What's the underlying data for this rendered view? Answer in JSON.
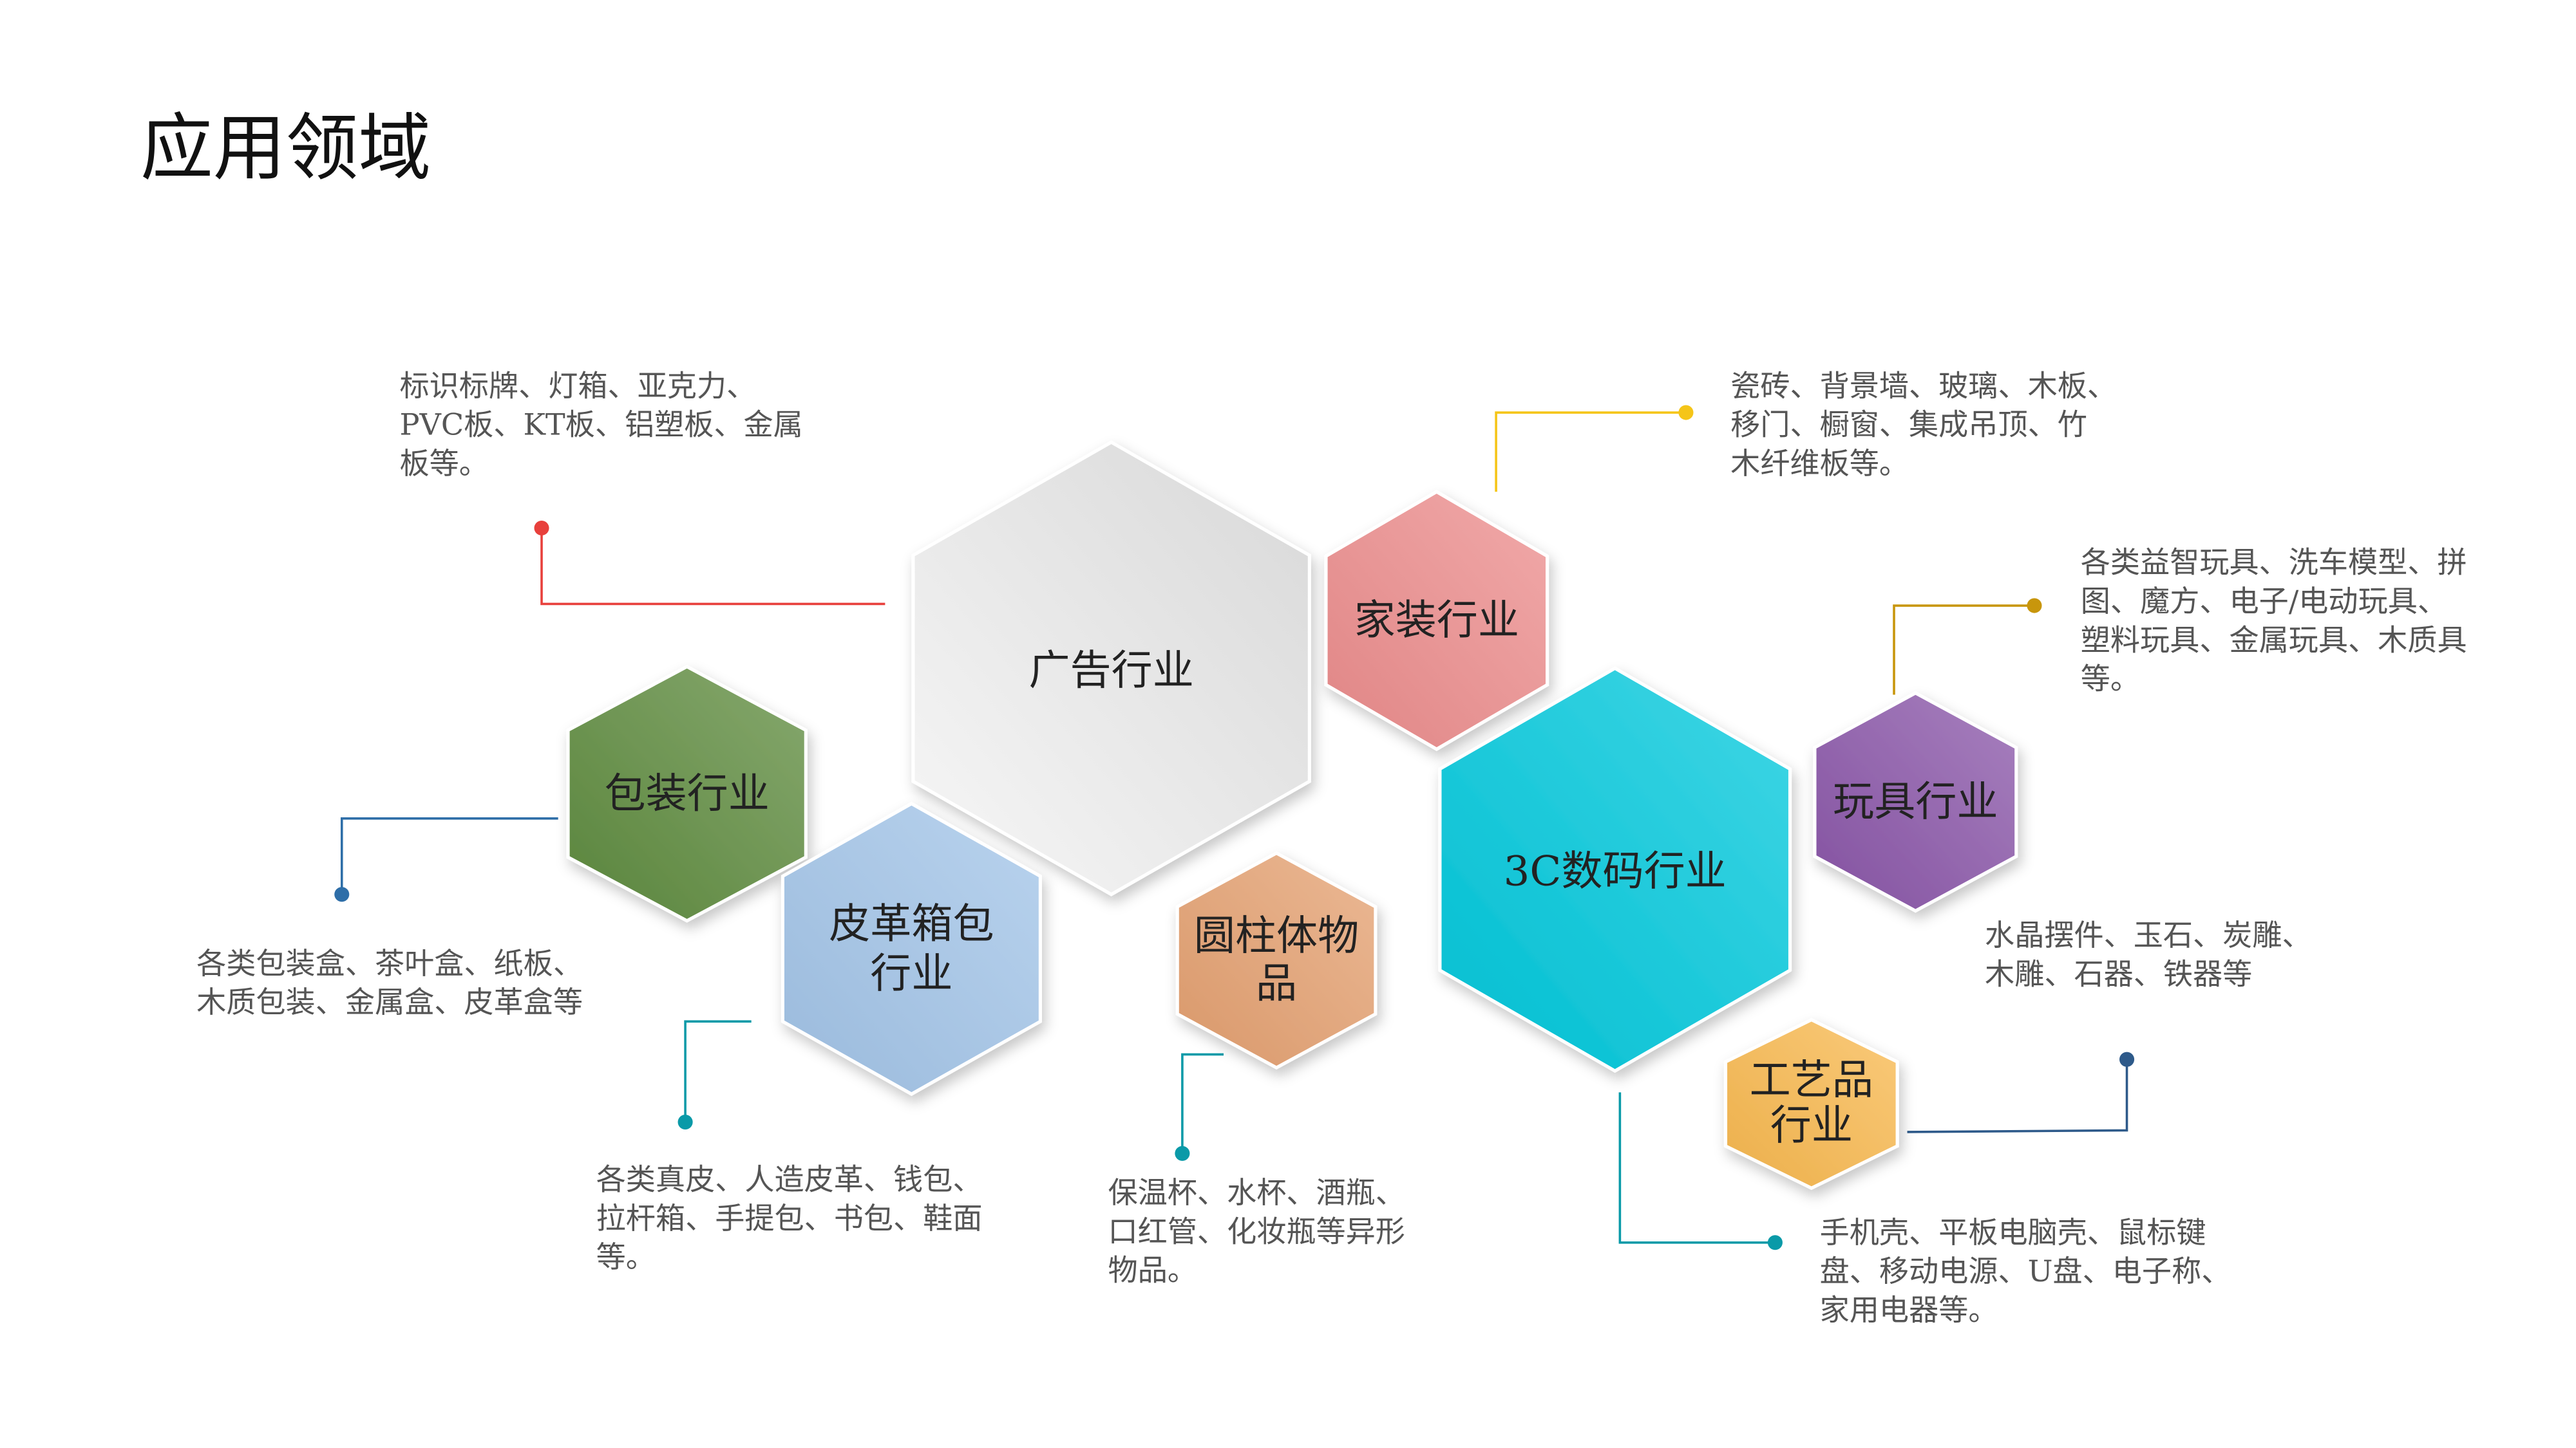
{
  "title": "应用领域",
  "colors": {
    "advertising": "#e0e0e0",
    "home": "#ec8c8c",
    "packaging": "#5e8b3e",
    "leather": "#a2c4e8",
    "cylinder": "#e4a070",
    "digital": "#00c8dc",
    "toys": "#8a55a8",
    "crafts": "#f8b84e"
  },
  "industries": {
    "advertising": {
      "label": [
        "广告行业"
      ],
      "desc": [
        "标识标牌、灯箱、亚克力、",
        "PVC板、KT板、铝塑板、金属",
        "板等。"
      ]
    },
    "home": {
      "label": [
        "家装行业"
      ],
      "desc": [
        "瓷砖、背景墙、玻璃、木板、",
        "移门、橱窗、集成吊顶、竹",
        "木纤维板等。"
      ]
    },
    "toys": {
      "label": [
        "玩具行业"
      ],
      "desc": [
        "各类益智玩具、洗车模型、拼",
        "图、魔方、电子/电动玩具、",
        "塑料玩具、金属玩具、木质具",
        "等。"
      ]
    },
    "crafts": {
      "label": [
        "工艺品",
        "行业"
      ],
      "desc": [
        "水晶摆件、玉石、炭雕、",
        "木雕、石器、铁器等"
      ]
    },
    "packaging": {
      "label": [
        "包装行业"
      ],
      "desc": [
        "各类包装盒、茶叶盒、纸板、",
        "木质包装、金属盒、皮革盒等"
      ]
    },
    "leather": {
      "label": [
        "皮革箱包",
        "行业"
      ],
      "desc": [
        "各类真皮、人造皮革、钱包、",
        "拉杆箱、手提包、书包、鞋面",
        "等。"
      ]
    },
    "cylinder": {
      "label": [
        "圆柱体物",
        "品"
      ],
      "desc": [
        "保温杯、水杯、酒瓶、",
        "口红管、化妆瓶等异形",
        "物品。"
      ]
    },
    "digital": {
      "label": [
        "3C数码行业"
      ],
      "desc": [
        "手机壳、平板电脑壳、鼠标键",
        "盘、移动电源、U盘、电子称、",
        "家用电器等。"
      ]
    }
  }
}
